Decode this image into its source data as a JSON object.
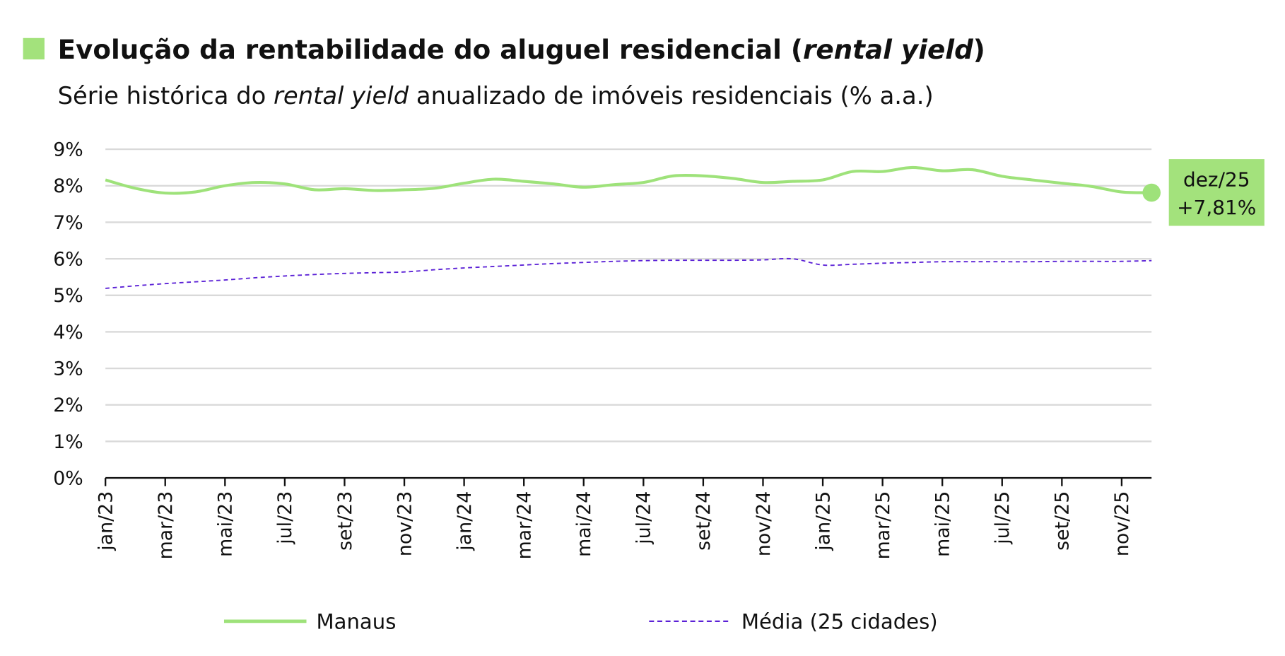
{
  "header": {
    "title_part1": "Evolução da rentabilidade do aluguel residencial (",
    "title_italic": "rental yield",
    "title_part2": ")",
    "subtitle_part1": "Série histórica do ",
    "subtitle_italic": "rental yield",
    "subtitle_part2": " anualizado de imóveis residenciais (% a.a.)",
    "accent_color": "#a3e27c"
  },
  "chart_data": {
    "type": "line",
    "title": "Evolução da rentabilidade do aluguel residencial (rental yield)",
    "subtitle": "Série histórica do rental yield anualizado de imóveis residenciais (% a.a.)",
    "xlabel": "",
    "ylabel": "",
    "ylim": [
      0,
      9
    ],
    "yticks": [
      "0%",
      "1%",
      "2%",
      "3%",
      "4%",
      "5%",
      "6%",
      "7%",
      "8%",
      "9%"
    ],
    "grid": true,
    "legend_position": "bottom",
    "x": [
      "jan/23",
      "fev/23",
      "mar/23",
      "abr/23",
      "mai/23",
      "jun/23",
      "jul/23",
      "ago/23",
      "set/23",
      "out/23",
      "nov/23",
      "dez/23",
      "jan/24",
      "fev/24",
      "mar/24",
      "abr/24",
      "mai/24",
      "jun/24",
      "jul/24",
      "ago/24",
      "set/24",
      "out/24",
      "nov/24",
      "dez/24",
      "jan/25",
      "fev/25",
      "mar/25",
      "abr/25",
      "mai/25",
      "jun/25",
      "jul/25",
      "ago/25",
      "set/25",
      "out/25",
      "nov/25",
      "dez/25"
    ],
    "xtick_labels": [
      "jan/23",
      "mar/23",
      "mai/23",
      "jul/23",
      "set/23",
      "nov/23",
      "jan/24",
      "mar/24",
      "mai/24",
      "jul/24",
      "set/24",
      "nov/24",
      "jan/25",
      "mar/25",
      "mai/25",
      "jul/25",
      "set/25",
      "nov/25"
    ],
    "series": [
      {
        "name": "Manaus",
        "color": "#9ee27a",
        "style": "solid",
        "values": [
          8.16,
          7.93,
          7.8,
          7.83,
          8.0,
          8.09,
          8.05,
          7.89,
          7.92,
          7.87,
          7.89,
          7.93,
          8.07,
          8.18,
          8.12,
          8.05,
          7.96,
          8.03,
          8.09,
          8.27,
          8.27,
          8.2,
          8.09,
          8.12,
          8.16,
          8.39,
          8.39,
          8.5,
          8.41,
          8.44,
          8.26,
          8.16,
          8.07,
          7.98,
          7.83,
          7.81
        ]
      },
      {
        "name": "Média (25 cidades)",
        "color": "#5b21d6",
        "style": "dashed",
        "values": [
          5.19,
          5.26,
          5.32,
          5.37,
          5.42,
          5.48,
          5.53,
          5.57,
          5.6,
          5.62,
          5.64,
          5.7,
          5.75,
          5.79,
          5.83,
          5.87,
          5.9,
          5.93,
          5.95,
          5.96,
          5.96,
          5.96,
          5.97,
          6.0,
          5.83,
          5.85,
          5.88,
          5.9,
          5.92,
          5.92,
          5.92,
          5.92,
          5.93,
          5.93,
          5.93,
          5.95
        ]
      }
    ],
    "annotation": {
      "label": "dez/25",
      "value": "+7,81%"
    }
  }
}
